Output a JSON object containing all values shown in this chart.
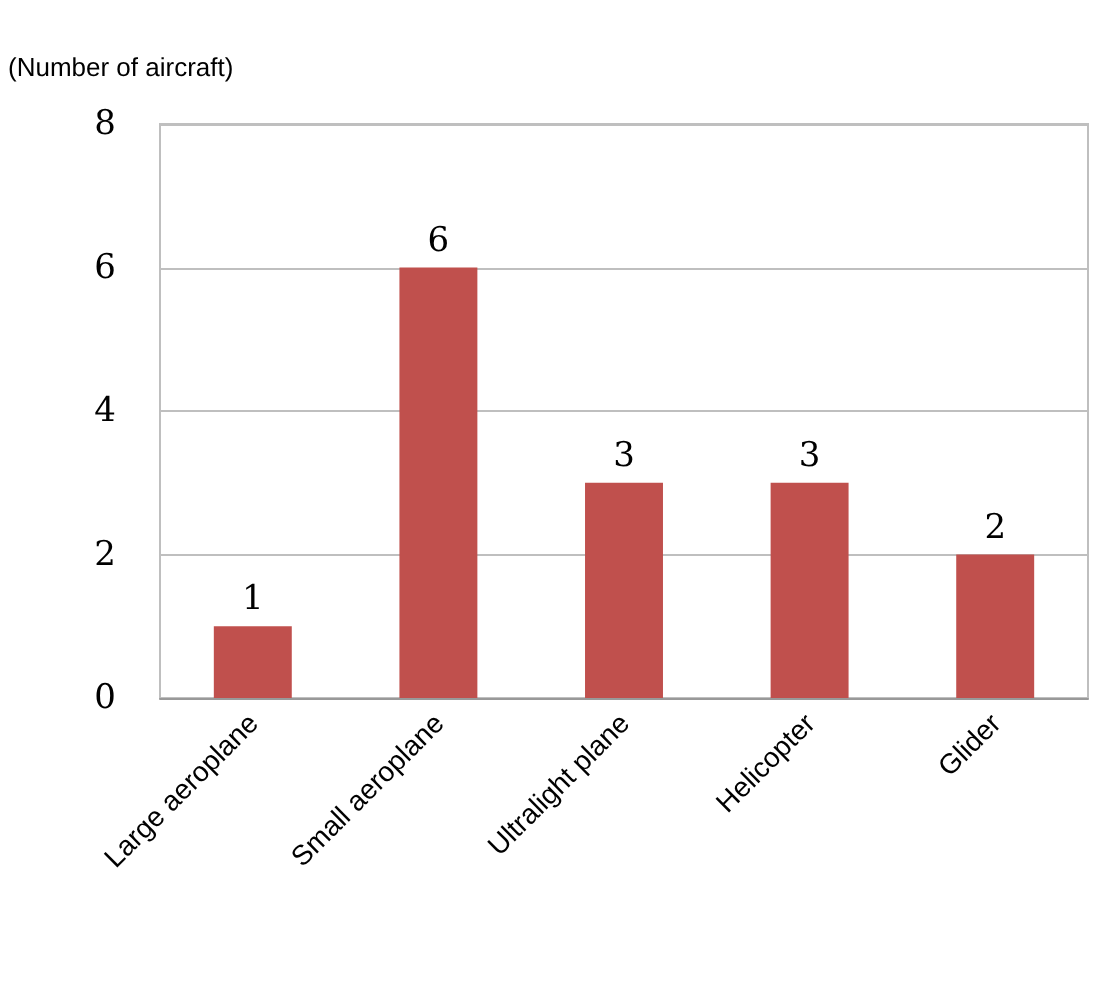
{
  "chart_data": {
    "type": "bar",
    "ylabel": "(Number of aircraft)",
    "categories": [
      "Large aeroplane",
      "Small aeroplane",
      "Ultralight plane",
      "Helicopter",
      "Glider"
    ],
    "values": [
      1,
      6,
      3,
      3,
      2
    ],
    "color": "#c0504d",
    "ylim": [
      0,
      8
    ],
    "yticks": [
      0,
      2,
      4,
      6,
      8
    ],
    "grid": "y",
    "data_labels": true
  }
}
